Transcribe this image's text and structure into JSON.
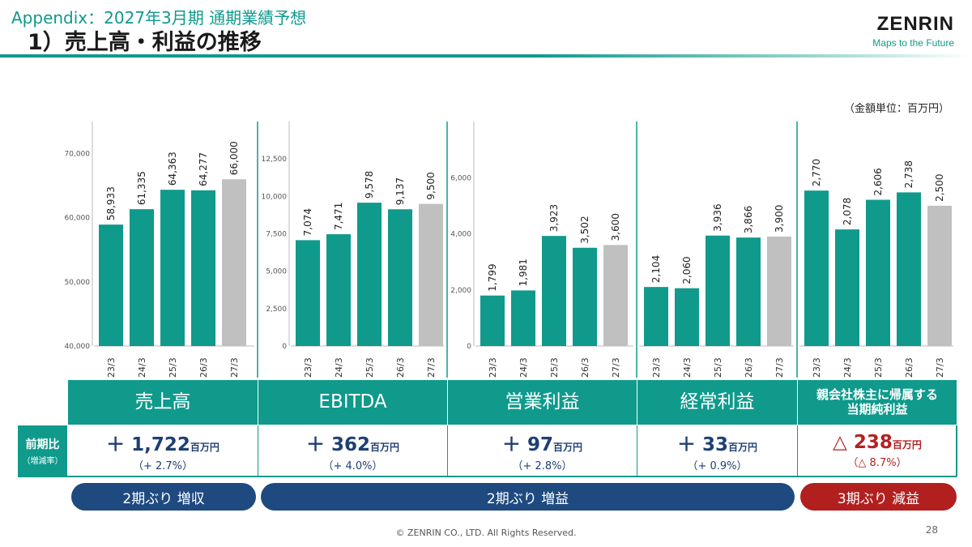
{
  "header": {
    "subtitle": "Appendix：2027年3月期 通期業績予想",
    "title": "1）売上高・利益の推移",
    "logo": "ZENRIN",
    "logo_tagline": "Maps to the Future"
  },
  "unit_note": "（金額単位：百万円）",
  "colors": {
    "teal": "#0f9a8c",
    "forecast": "#c0c0c0",
    "navy": "#1f3f73",
    "pill_blue": "#1e4a80",
    "pill_red": "#b21f1f",
    "negative": "#b22222"
  },
  "chart_data": [
    {
      "type": "bar",
      "categories": [
        "23/3",
        "24/3",
        "25/3",
        "26/3",
        "27/3"
      ],
      "values": [
        58933,
        61335,
        64363,
        64277,
        66000
      ],
      "labels": [
        "58,933",
        "61,335",
        "64,363",
        "64,277",
        "66,000"
      ],
      "ylim": [
        40000,
        75000
      ],
      "yticks": [
        40000,
        50000,
        60000,
        70000
      ],
      "ytick_labels": [
        "40,000",
        "50,000",
        "60,000",
        "70,000"
      ],
      "forecast_index": 4
    },
    {
      "type": "bar",
      "categories": [
        "23/3",
        "24/3",
        "25/3",
        "26/3",
        "27/3"
      ],
      "values": [
        7074,
        7471,
        9578,
        9137,
        9500
      ],
      "labels": [
        "7,074",
        "7,471",
        "9,578",
        "9,137",
        "9,500"
      ],
      "ylim": [
        0,
        15000
      ],
      "yticks": [
        0,
        2500,
        5000,
        7500,
        10000,
        12500
      ],
      "ytick_labels": [
        "0",
        "2,500",
        "5,000",
        "7,500",
        "10,000",
        "12,500"
      ],
      "forecast_index": 4
    },
    {
      "type": "bar",
      "categories": [
        "23/3",
        "24/3",
        "25/3",
        "26/3",
        "27/3"
      ],
      "values": [
        1799,
        1981,
        3923,
        3502,
        3600
      ],
      "labels": [
        "1,799",
        "1,981",
        "3,923",
        "3,502",
        "3,600"
      ],
      "ylim": [
        0,
        8000
      ],
      "yticks": [
        0,
        2000,
        4000,
        6000
      ],
      "ytick_labels": [
        "0",
        "2,000",
        "4,000",
        "6,000"
      ],
      "forecast_index": 4
    },
    {
      "type": "bar",
      "categories": [
        "23/3",
        "24/3",
        "25/3",
        "26/3",
        "27/3"
      ],
      "values": [
        2104,
        2060,
        3936,
        3866,
        3900
      ],
      "labels": [
        "2,104",
        "2,060",
        "3,936",
        "3,866",
        "3,900"
      ],
      "ylim": [
        0,
        8000
      ],
      "yticks": [],
      "ytick_labels": [],
      "forecast_index": 4
    },
    {
      "type": "bar",
      "categories": [
        "23/3",
        "24/3",
        "25/3",
        "26/3",
        "27/3"
      ],
      "values": [
        2770,
        2078,
        2606,
        2738,
        2500
      ],
      "labels": [
        "2,770",
        "2,078",
        "2,606",
        "2,738",
        "2,500"
      ],
      "ylim": [
        0,
        4000
      ],
      "yticks": [],
      "ytick_labels": [],
      "forecast_index": 4
    }
  ],
  "table": {
    "row_label": "前期比",
    "row_sublabel": "（増減率）",
    "columns": [
      {
        "header": "売上高",
        "change": "＋ 1,722",
        "unit": "百万円",
        "rate": "（+ 2.7%）"
      },
      {
        "header": "EBITDA",
        "change": "＋ 362",
        "unit": "百万円",
        "rate": "（+ 4.0%）"
      },
      {
        "header": "営業利益",
        "change": "＋ 97",
        "unit": "百万円",
        "rate": "（+ 2.8%）"
      },
      {
        "header": "経常利益",
        "change": "＋ 33",
        "unit": "百万円",
        "rate": "（+ 0.9%）"
      },
      {
        "header_line1": "親会社株主に帰属する",
        "header_line2": "当期純利益",
        "change": "△ 238",
        "unit": "百万円",
        "rate": "（△ 8.7%）"
      }
    ]
  },
  "badges": [
    {
      "label": "2期ぶり 増収"
    },
    {
      "label": "2期ぶり 増益"
    },
    {
      "label": "3期ぶり 減益"
    }
  ],
  "footer": {
    "copyright": "© ZENRIN CO., LTD. All Rights Reserved.",
    "page_number": "28"
  }
}
